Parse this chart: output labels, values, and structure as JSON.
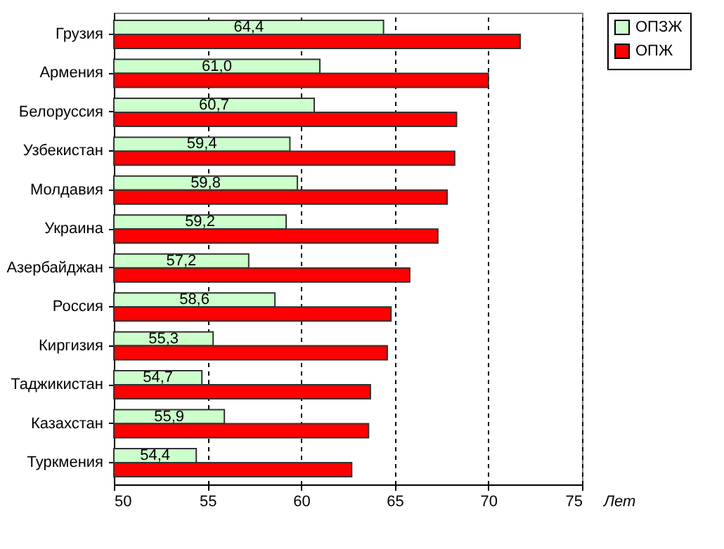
{
  "chart_data": {
    "type": "bar",
    "orientation": "horizontal",
    "xlabel": "Лет",
    "categories": [
      "Грузия",
      "Армения",
      "Белоруссия",
      "Узбекистан",
      "Молдавия",
      "Украина",
      "Азербайджан",
      "Россия",
      "Киргизия",
      "Таджикистан",
      "Казахстан",
      "Туркмения"
    ],
    "series": [
      {
        "name": "ОПЗЖ",
        "color": "#ccffcc",
        "values": [
          64.4,
          61.0,
          60.7,
          59.4,
          59.8,
          59.2,
          57.2,
          58.6,
          55.3,
          54.7,
          55.9,
          54.4
        ],
        "value_labels": [
          "64,4",
          "61,0",
          "60,7",
          "59,4",
          "59,8",
          "59,2",
          "57,2",
          "58,6",
          "55,3",
          "54,7",
          "55,9",
          "54,4"
        ]
      },
      {
        "name": "ОПЖ",
        "color": "#ff0000",
        "values": [
          71.7,
          70.0,
          68.3,
          68.2,
          67.8,
          67.3,
          65.8,
          64.8,
          64.6,
          63.7,
          63.6,
          62.7
        ]
      }
    ],
    "xlim": [
      50,
      75
    ],
    "xticks": [
      50,
      55,
      60,
      65,
      70,
      75
    ],
    "grid": "x",
    "legend": "right"
  }
}
